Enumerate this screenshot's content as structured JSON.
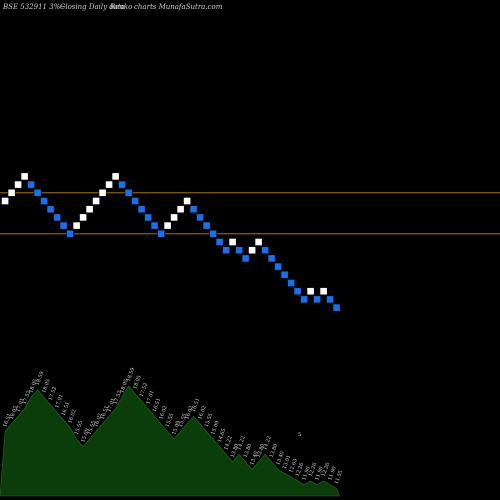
{
  "header": {
    "symbol": "BSE 532911 3%~",
    "description": "Closing Daily data",
    "chart_kind": "Renko",
    "site": "charts MunafaSutra.com"
  },
  "colors": {
    "background": "#000000",
    "up_brick": "#ffffff",
    "down_brick": "#1e6fe6",
    "brick_border": "#000000",
    "level_line": "#b8862b",
    "volume_fill": "#0b3d0b",
    "volume_outline": "#2a6a2a",
    "label_text": "#dddddd"
  },
  "chart_data": {
    "type": "renko",
    "brick_size_pct": 3,
    "bricks": [
      {
        "dir": "up",
        "level": 3
      },
      {
        "dir": "up",
        "level": 4
      },
      {
        "dir": "up",
        "level": 5
      },
      {
        "dir": "up",
        "level": 6
      },
      {
        "dir": "down",
        "level": 5
      },
      {
        "dir": "down",
        "level": 4
      },
      {
        "dir": "down",
        "level": 3
      },
      {
        "dir": "down",
        "level": 2
      },
      {
        "dir": "down",
        "level": 1
      },
      {
        "dir": "down",
        "level": 0
      },
      {
        "dir": "down",
        "level": -1
      },
      {
        "dir": "up",
        "level": 0
      },
      {
        "dir": "up",
        "level": 1
      },
      {
        "dir": "up",
        "level": 2
      },
      {
        "dir": "up",
        "level": 3
      },
      {
        "dir": "up",
        "level": 4
      },
      {
        "dir": "up",
        "level": 5
      },
      {
        "dir": "up",
        "level": 6
      },
      {
        "dir": "down",
        "level": 5
      },
      {
        "dir": "down",
        "level": 4
      },
      {
        "dir": "down",
        "level": 3
      },
      {
        "dir": "down",
        "level": 2
      },
      {
        "dir": "down",
        "level": 1
      },
      {
        "dir": "down",
        "level": 0
      },
      {
        "dir": "down",
        "level": -1
      },
      {
        "dir": "up",
        "level": 0
      },
      {
        "dir": "up",
        "level": 1
      },
      {
        "dir": "up",
        "level": 2
      },
      {
        "dir": "up",
        "level": 3
      },
      {
        "dir": "down",
        "level": 2
      },
      {
        "dir": "down",
        "level": 1
      },
      {
        "dir": "down",
        "level": 0
      },
      {
        "dir": "down",
        "level": -1
      },
      {
        "dir": "down",
        "level": -2
      },
      {
        "dir": "down",
        "level": -3
      },
      {
        "dir": "up",
        "level": -2
      },
      {
        "dir": "down",
        "level": -3
      },
      {
        "dir": "down",
        "level": -4
      },
      {
        "dir": "up",
        "level": -3
      },
      {
        "dir": "up",
        "level": -2
      },
      {
        "dir": "down",
        "level": -3
      },
      {
        "dir": "down",
        "level": -4
      },
      {
        "dir": "down",
        "level": -5
      },
      {
        "dir": "down",
        "level": -6
      },
      {
        "dir": "down",
        "level": -7
      },
      {
        "dir": "down",
        "level": -8
      },
      {
        "dir": "down",
        "level": -9
      },
      {
        "dir": "up",
        "level": -8
      },
      {
        "dir": "down",
        "level": -9
      },
      {
        "dir": "up",
        "level": -8
      },
      {
        "dir": "down",
        "level": -9
      },
      {
        "dir": "down",
        "level": -10
      }
    ],
    "reference_levels": [
      4,
      -1
    ],
    "volume_labels": [
      "16.51",
      "16.02",
      "17.01",
      "17.52",
      "18.05",
      "18.59",
      "18.05",
      "17.52",
      "17.01",
      "16.51",
      "16.02",
      "15.55",
      "15.09",
      "15.55",
      "16.02",
      "16.51",
      "17.01",
      "17.52",
      "18.05",
      "18.59",
      "18.05",
      "17.52",
      "17.01",
      "16.51",
      "16.02",
      "15.55",
      "15.09",
      "15.55",
      "16.02",
      "16.51",
      "16.02",
      "15.55",
      "15.09",
      "14.65",
      "14.22",
      "13.80",
      "14.22",
      "13.80",
      "13.40",
      "13.80",
      "14.22",
      "13.80",
      "13.40",
      "13.01",
      "12.63",
      "12.26",
      "11.90",
      "12.26",
      "11.90",
      "12.26",
      "11.90",
      "11.55"
    ],
    "volume_marker": "5",
    "volume_profile": [
      34,
      38,
      42,
      46,
      52,
      56,
      52,
      48,
      44,
      40,
      36,
      30,
      26,
      30,
      34,
      38,
      42,
      46,
      52,
      58,
      54,
      50,
      46,
      42,
      38,
      34,
      30,
      34,
      38,
      42,
      38,
      34,
      30,
      26,
      22,
      18,
      22,
      18,
      14,
      18,
      22,
      18,
      14,
      12,
      10,
      8,
      6,
      8,
      6,
      8,
      6,
      4
    ]
  }
}
